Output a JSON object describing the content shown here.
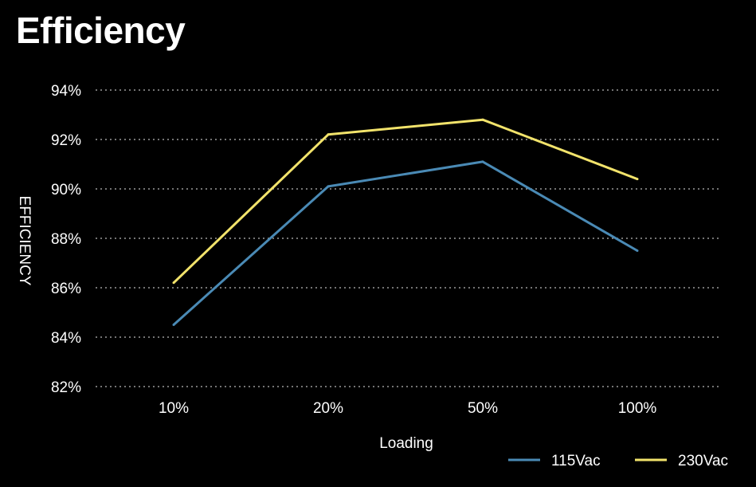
{
  "chart_data": {
    "type": "line",
    "title": "Efficiency",
    "xlabel": "Loading",
    "ylabel": "EFFICIENCY",
    "categories": [
      "10%",
      "20%",
      "50%",
      "100%"
    ],
    "y_ticks": [
      "82%",
      "84%",
      "86%",
      "88%",
      "90%",
      "92%",
      "94%"
    ],
    "ylim": [
      82,
      94
    ],
    "grid": "horizontal dotted",
    "legend_position": "bottom-right",
    "series": [
      {
        "name": "115Vac",
        "color": "#4a8ab5",
        "values": [
          84.5,
          90.1,
          91.1,
          87.5
        ]
      },
      {
        "name": "230Vac",
        "color": "#f2e36b",
        "values": [
          86.2,
          92.2,
          92.8,
          90.4
        ]
      }
    ]
  }
}
